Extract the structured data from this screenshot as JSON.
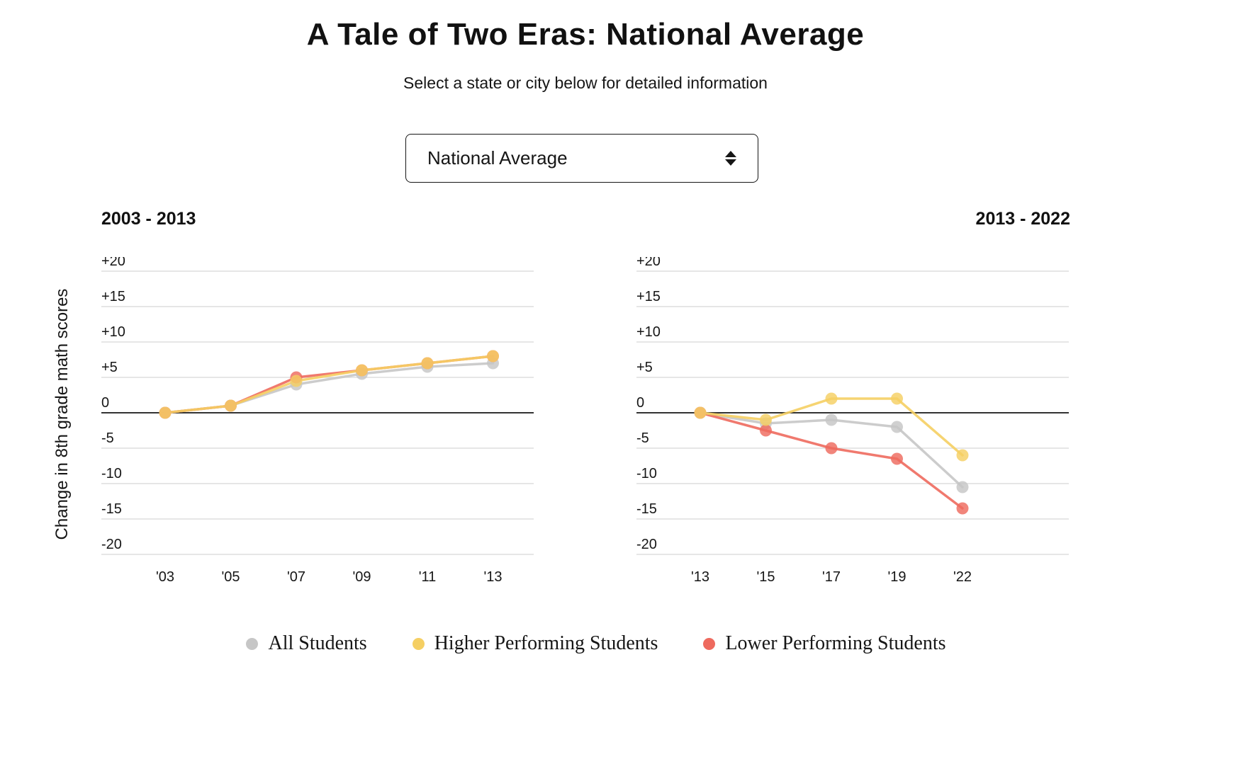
{
  "page": {
    "title": "A Tale of Two Eras: National Average",
    "subtitle": "Select a state or city below for detailed information"
  },
  "selector": {
    "value": "National Average",
    "icon": "up-down-arrows"
  },
  "y_axis_label": "Change in 8th grade math scores",
  "legend": [
    {
      "label": "All Students",
      "color": "#c6c6c6"
    },
    {
      "label": "Higher Performing Students",
      "color": "#f5cf63"
    },
    {
      "label": "Lower Performing Students",
      "color": "#ee6a5e"
    }
  ],
  "chart_data": [
    {
      "type": "line",
      "title": "2003 - 2013",
      "xlabel": "",
      "ylabel": "Change in 8th grade math scores",
      "ylim": [
        -20,
        20
      ],
      "grid": true,
      "legend_position": "bottom",
      "x_labels": [
        "'03",
        "'05",
        "'07",
        "'09",
        "'11",
        "'13"
      ],
      "yticks": [
        {
          "value": 20,
          "label": "+20"
        },
        {
          "value": 15,
          "label": "+15"
        },
        {
          "value": 10,
          "label": "+10"
        },
        {
          "value": 5,
          "label": "+5"
        },
        {
          "value": 0,
          "label": "0"
        },
        {
          "value": -5,
          "label": "-5"
        },
        {
          "value": -10,
          "label": "-10"
        },
        {
          "value": -15,
          "label": "-15"
        },
        {
          "value": -20,
          "label": "-20"
        }
      ],
      "series": [
        {
          "name": "All Students",
          "color": "#c6c6c6",
          "values": [
            0,
            1,
            4,
            5.5,
            6.5,
            7
          ]
        },
        {
          "name": "Lower Performing Students",
          "color": "#ee6a5e",
          "values": [
            0,
            1,
            5,
            6,
            7,
            8
          ]
        },
        {
          "name": "Higher Performing Students",
          "color": "#f5cf63",
          "values": [
            0,
            1,
            4.5,
            6,
            7,
            8
          ]
        }
      ]
    },
    {
      "type": "line",
      "title": "2013 - 2022",
      "xlabel": "",
      "ylabel": "Change in 8th grade math scores",
      "ylim": [
        -20,
        20
      ],
      "grid": true,
      "legend_position": "bottom",
      "x_labels": [
        "'13",
        "'15",
        "'17",
        "'19",
        "'22"
      ],
      "yticks": [
        {
          "value": 20,
          "label": "+20"
        },
        {
          "value": 15,
          "label": "+15"
        },
        {
          "value": 10,
          "label": "+10"
        },
        {
          "value": 5,
          "label": "+5"
        },
        {
          "value": 0,
          "label": "0"
        },
        {
          "value": -5,
          "label": "-5"
        },
        {
          "value": -10,
          "label": "-10"
        },
        {
          "value": -15,
          "label": "-15"
        },
        {
          "value": -20,
          "label": "-20"
        }
      ],
      "series": [
        {
          "name": "All Students",
          "color": "#c6c6c6",
          "values": [
            0,
            -1.5,
            -1,
            -2,
            -10.5
          ]
        },
        {
          "name": "Lower Performing Students",
          "color": "#ee6a5e",
          "values": [
            0,
            -2.5,
            -5,
            -6.5,
            -13.5
          ]
        },
        {
          "name": "Higher Performing Students",
          "color": "#f5cf63",
          "values": [
            0,
            -1,
            2,
            2,
            -6
          ]
        }
      ]
    }
  ]
}
